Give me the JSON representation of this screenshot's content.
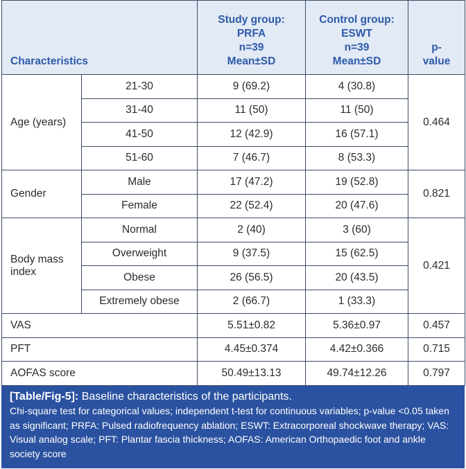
{
  "table": {
    "headers": {
      "characteristics": "Characteristics",
      "study": [
        "Study group:",
        "PRFA",
        "n=39",
        "Mean±SD"
      ],
      "control": [
        "Control group:",
        "ESWT",
        "n=39",
        "Mean±SD"
      ],
      "pvalue": [
        "p-",
        "value"
      ]
    },
    "groups": [
      {
        "label": "Age (years)",
        "p": "0.464",
        "rows": [
          {
            "sub": "21-30",
            "study": "9 (69.2)",
            "control": "4 (30.8)"
          },
          {
            "sub": "31-40",
            "study": "11 (50)",
            "control": "11 (50)"
          },
          {
            "sub": "41-50",
            "study": "12 (42.9)",
            "control": "16 (57.1)"
          },
          {
            "sub": "51-60",
            "study": "7 (46.7)",
            "control": "8 (53.3)"
          }
        ]
      },
      {
        "label": "Gender",
        "p": "0.821",
        "rows": [
          {
            "sub": "Male",
            "study": "17 (47.2)",
            "control": "19 (52.8)"
          },
          {
            "sub": "Female",
            "study": "22 (52.4)",
            "control": "20 (47.6)"
          }
        ]
      },
      {
        "label": "Body mass index",
        "p": "0.421",
        "rows": [
          {
            "sub": "Normal",
            "study": "2 (40)",
            "control": "3 (60)"
          },
          {
            "sub": "Overweight",
            "study": "9 (37.5)",
            "control": "15 (62.5)"
          },
          {
            "sub": "Obese",
            "study": "26 (56.5)",
            "control": "20 (43.5)"
          },
          {
            "sub": "Extremely obese",
            "study": "2 (66.7)",
            "control": "1 (33.3)"
          }
        ]
      }
    ],
    "singles": [
      {
        "label": "VAS",
        "study": "5.51±0.82",
        "control": "5.36±0.97",
        "p": "0.457"
      },
      {
        "label": "PFT",
        "study": "4.45±0.374",
        "control": "4.42±0.366",
        "p": "0.715"
      },
      {
        "label": "AOFAS score",
        "study": "50.49±13.13",
        "control": "49.74±12.26",
        "p": "0.797"
      }
    ]
  },
  "caption": {
    "label": "[Table/Fig-5]:",
    "title": "Baseline characteristics of the participants.",
    "note": "Chi-square test for categorical values; independent t-test for continuous variables; p-value <0.05 taken as significant; PRFA: Pulsed radiofrequency ablation; ESWT: Extracorporeal shockwave therapy; VAS: Visual analog scale; PFT: Plantar fascia thickness; AOFAS: American Orthopaedic foot and ankle society score"
  }
}
